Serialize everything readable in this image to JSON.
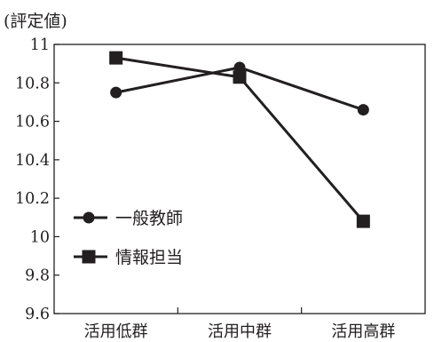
{
  "chart_data": {
    "type": "line",
    "title": "",
    "ylabel": "(評定値)",
    "xlabel": "",
    "categories": [
      "活用低群",
      "活用中群",
      "活用高群"
    ],
    "ylim": [
      9.6,
      11
    ],
    "yticks": [
      "11",
      "10.8",
      "10.6",
      "10.4",
      "10.2",
      "10",
      "9.8",
      "9.6"
    ],
    "grid": false,
    "legend_position": "lower-left, inside plot",
    "series": [
      {
        "name": "一般教師",
        "marker": "circle",
        "values": [
          10.75,
          10.88,
          10.66
        ]
      },
      {
        "name": "情報担当",
        "marker": "square",
        "values": [
          10.93,
          10.83,
          10.08
        ]
      }
    ],
    "colors": {
      "ink": "#231f20",
      "background": "#ffffff"
    }
  }
}
